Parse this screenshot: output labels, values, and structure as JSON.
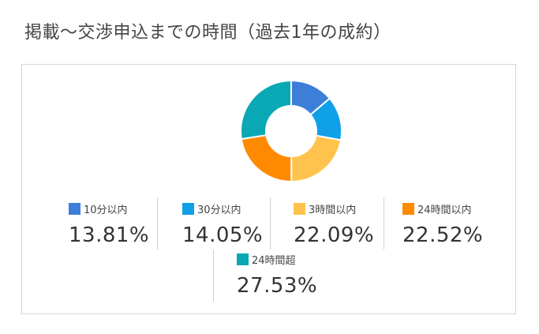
{
  "page": {
    "title": "掲載〜交渉申込までの時間（過去1年の成約）"
  },
  "chart_data": {
    "type": "pie",
    "categories": [
      "10分以内",
      "30分以内",
      "3時間以内",
      "24時間以内",
      "24時間超"
    ],
    "values": [
      13.81,
      14.05,
      22.09,
      22.52,
      27.53
    ],
    "colors": [
      "#3d7ed9",
      "#0fa0e8",
      "#ffc34d",
      "#ff8a00",
      "#0aa8b4"
    ],
    "labels": [
      "13.81%",
      "14.05%",
      "22.09%",
      "22.52%",
      "27.53%"
    ]
  }
}
